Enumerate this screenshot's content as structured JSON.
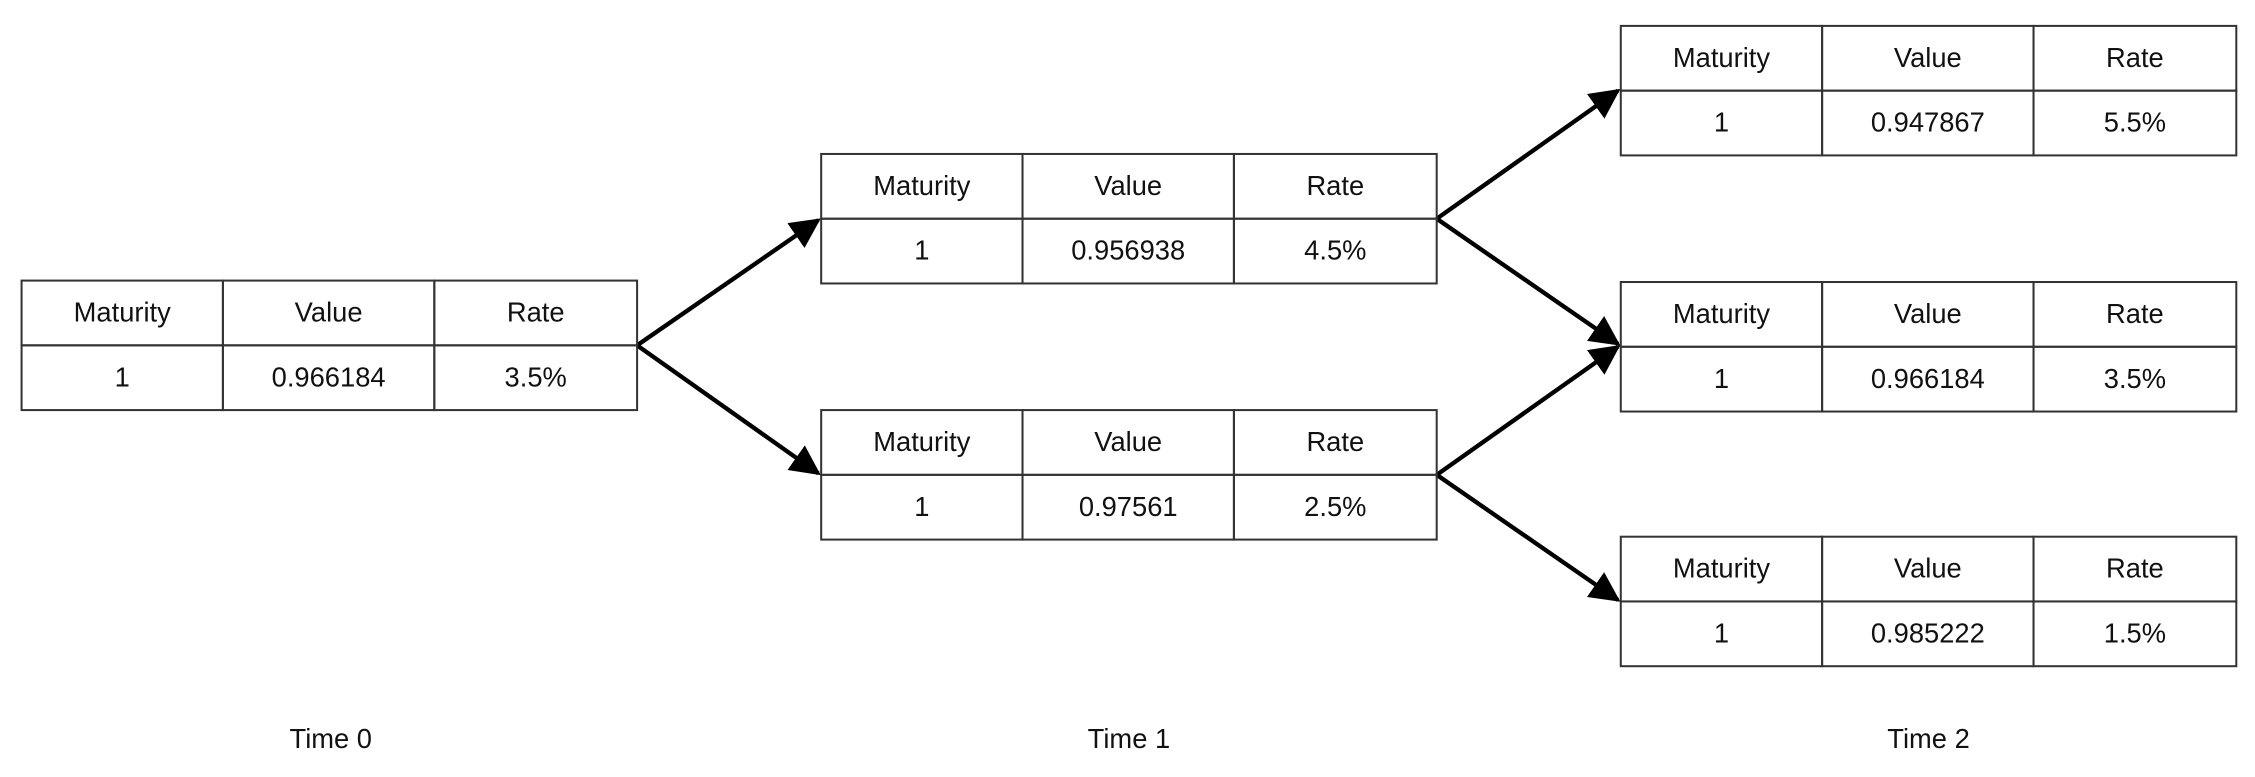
{
  "nodes": [
    {
      "header": [
        "Maturity",
        "Value",
        "Rate"
      ],
      "row": [
        "1",
        "0.966184",
        "3.5%"
      ]
    },
    {
      "header": [
        "Maturity",
        "Value",
        "Rate"
      ],
      "row": [
        "1",
        "0.956938",
        "4.5%"
      ]
    },
    {
      "header": [
        "Maturity",
        "Value",
        "Rate"
      ],
      "row": [
        "1",
        "0.97561",
        "2.5%"
      ]
    },
    {
      "header": [
        "Maturity",
        "Value",
        "Rate"
      ],
      "row": [
        "1",
        "0.947867",
        "5.5%"
      ]
    },
    {
      "header": [
        "Maturity",
        "Value",
        "Rate"
      ],
      "row": [
        "1",
        "0.966184",
        "3.5%"
      ]
    },
    {
      "header": [
        "Maturity",
        "Value",
        "Rate"
      ],
      "row": [
        "1",
        "0.985222",
        "1.5%"
      ]
    }
  ],
  "time_labels": [
    "Time 0",
    "Time 1",
    "Time 2"
  ]
}
